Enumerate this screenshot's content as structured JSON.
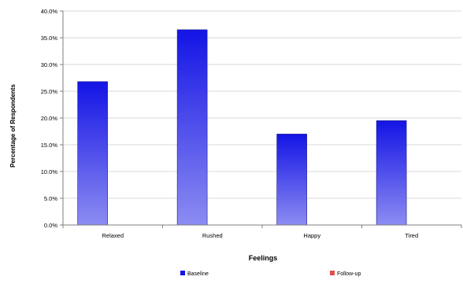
{
  "chart_data": {
    "type": "bar",
    "title": "",
    "xlabel": "Feelings",
    "ylabel": "Percentage of Respondents",
    "categories": [
      "Relaxed",
      "Rushed",
      "Happy",
      "Tired"
    ],
    "ylim": [
      0,
      40
    ],
    "yticks": [
      "0.0%",
      "5.0%",
      "10.0%",
      "15.0%",
      "20.0%",
      "25.0%",
      "30.0%",
      "35.0%",
      "40.0%"
    ],
    "series": [
      {
        "name": "Baseline",
        "values": [
          26.8,
          36.5,
          17.0,
          19.5
        ],
        "color_top": "#1414e6",
        "color_bottom": "#8c8cf2"
      },
      {
        "name": "Follow-up",
        "values": [
          null,
          null,
          null,
          null
        ],
        "color": "#e05050"
      }
    ],
    "grid": true,
    "legend_position": "bottom",
    "axis_color": "#7f7f7f",
    "grid_color": "#d9d9d9",
    "text_color": "#000000"
  }
}
